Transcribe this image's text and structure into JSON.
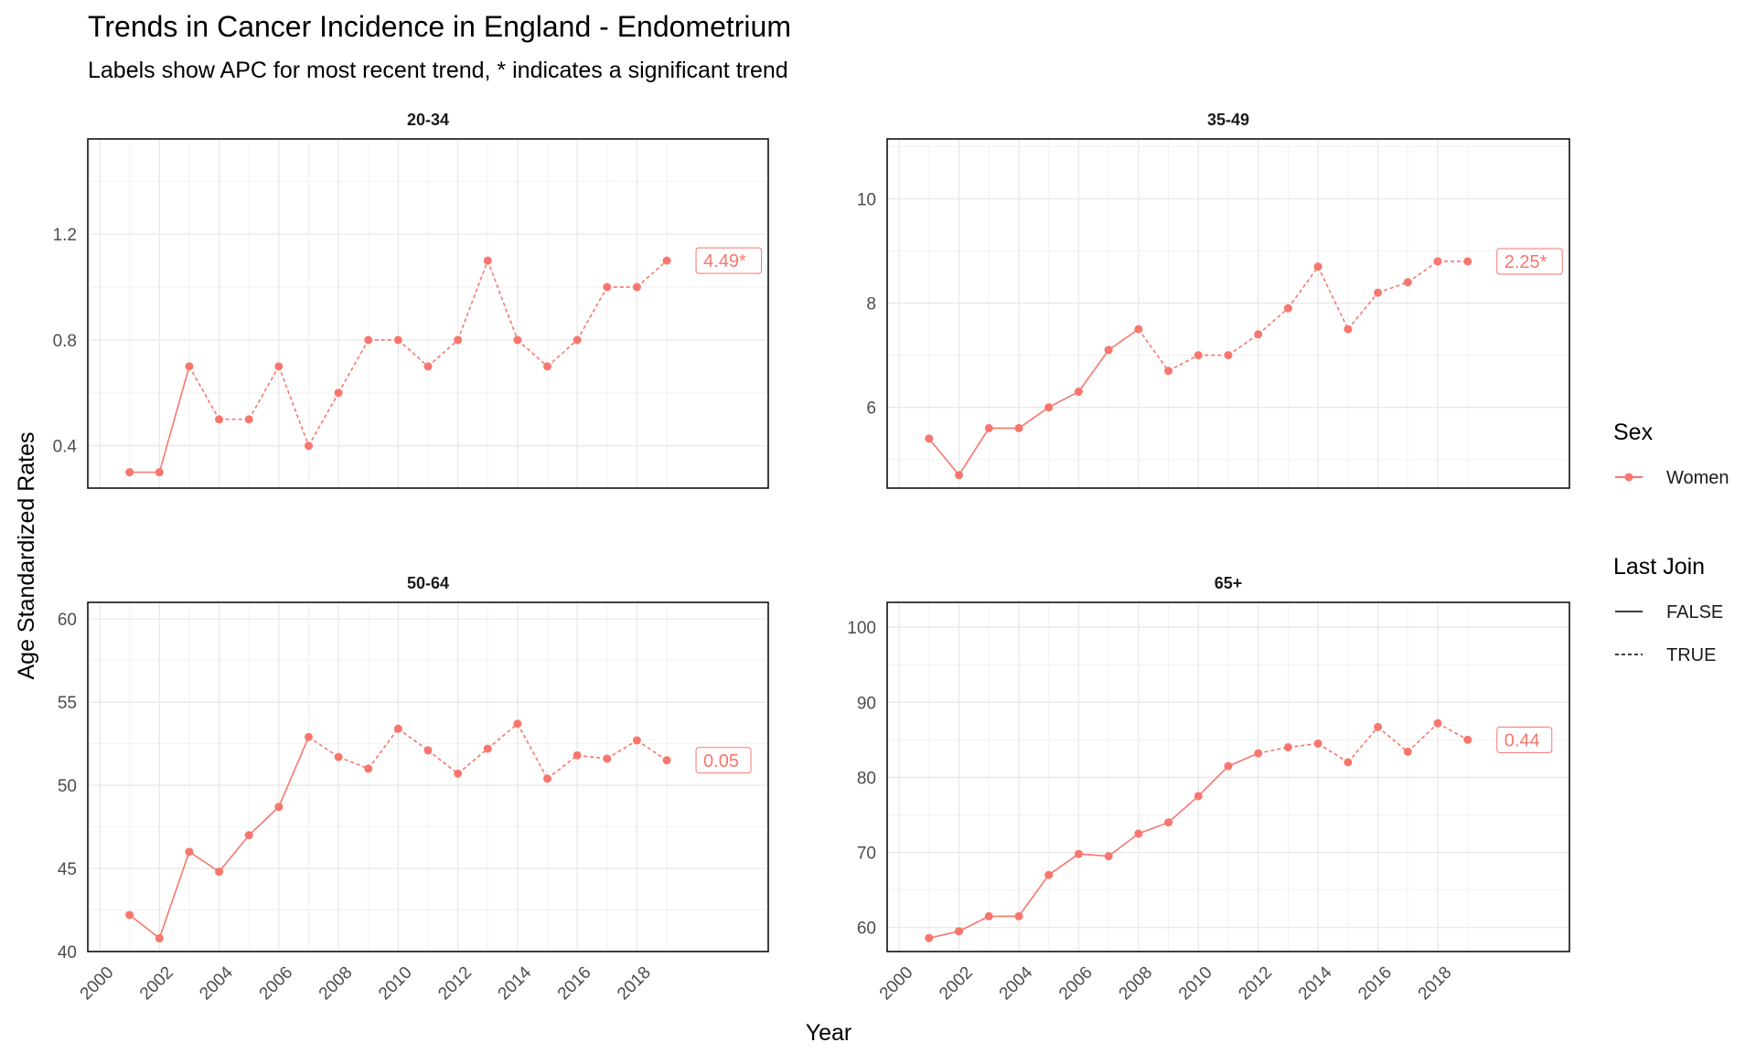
{
  "chart_data": {
    "type": "line",
    "title": "Trends in Cancer Incidence in England - Endometrium",
    "subtitle": "Labels show APC for most recent trend, * indicates a significant trend",
    "xlabel": "Year",
    "ylabel": "Age Standardized Rates",
    "x_ticks": [
      "2000",
      "2002",
      "2004",
      "2006",
      "2008",
      "2010",
      "2012",
      "2014",
      "2016",
      "2018"
    ],
    "xlim": [
      1999.6,
      2022.4
    ],
    "years": [
      2001,
      2002,
      2003,
      2004,
      2005,
      2006,
      2007,
      2008,
      2009,
      2010,
      2011,
      2012,
      2013,
      2014,
      2015,
      2016,
      2017,
      2018,
      2019
    ],
    "series_color": "#F8766D",
    "legend": {
      "position": "right",
      "sex_title": "Sex",
      "sex_items": [
        {
          "label": "Women",
          "color": "#F8766D"
        }
      ],
      "join_title": "Last Join",
      "join_items": [
        {
          "label": "FALSE",
          "linetype": "solid"
        },
        {
          "label": "TRUE",
          "linetype": "dashed"
        }
      ]
    },
    "panels": [
      {
        "label": "20-34",
        "ylim": [
          0.24,
          1.56
        ],
        "y_ticks": [
          0.4,
          0.8,
          1.2
        ],
        "y_tick_labels": [
          "0.4",
          "0.8",
          "1.2"
        ],
        "values": [
          0.3,
          0.3,
          0.7,
          0.5,
          0.5,
          0.7,
          0.4,
          0.6,
          0.8,
          0.8,
          0.7,
          0.8,
          1.1,
          0.8,
          0.7,
          0.8,
          1.0,
          1.0,
          1.1
        ],
        "last_join_start_year": 2003,
        "apc_label": "4.49*"
      },
      {
        "label": "35-49",
        "ylim": [
          4.45,
          11.15
        ],
        "y_ticks": [
          6,
          8,
          10
        ],
        "y_tick_labels": [
          "6",
          "8",
          "10"
        ],
        "values": [
          5.4,
          4.7,
          5.6,
          5.6,
          6.0,
          6.3,
          7.1,
          7.5,
          6.7,
          7.0,
          7.0,
          7.4,
          7.9,
          8.7,
          7.5,
          8.2,
          8.4,
          8.8,
          8.8
        ],
        "last_join_start_year": 2008,
        "apc_label": "2.25*"
      },
      {
        "label": "50-64",
        "ylim": [
          40.0,
          61.0
        ],
        "y_ticks": [
          40,
          45,
          50,
          55,
          60
        ],
        "y_tick_labels": [
          "40",
          "45",
          "50",
          "55",
          "60"
        ],
        "values": [
          42.2,
          40.8,
          46.0,
          44.8,
          47.0,
          48.7,
          52.9,
          51.7,
          51.0,
          53.4,
          52.1,
          50.7,
          52.2,
          53.7,
          50.4,
          51.8,
          51.6,
          52.7,
          51.5
        ],
        "last_join_start_year": 2007,
        "apc_label": "0.05"
      },
      {
        "label": "65+",
        "ylim": [
          56.8,
          103.3
        ],
        "y_ticks": [
          60,
          70,
          80,
          90,
          100
        ],
        "y_tick_labels": [
          "60",
          "70",
          "80",
          "90",
          "100"
        ],
        "values": [
          58.6,
          59.5,
          61.5,
          61.5,
          67.0,
          69.8,
          69.5,
          72.5,
          74.0,
          77.5,
          81.5,
          83.2,
          84.0,
          84.5,
          82.0,
          86.7,
          83.4,
          87.2,
          85.0
        ],
        "last_join_start_year": 2012,
        "apc_label": "0.44"
      }
    ]
  }
}
